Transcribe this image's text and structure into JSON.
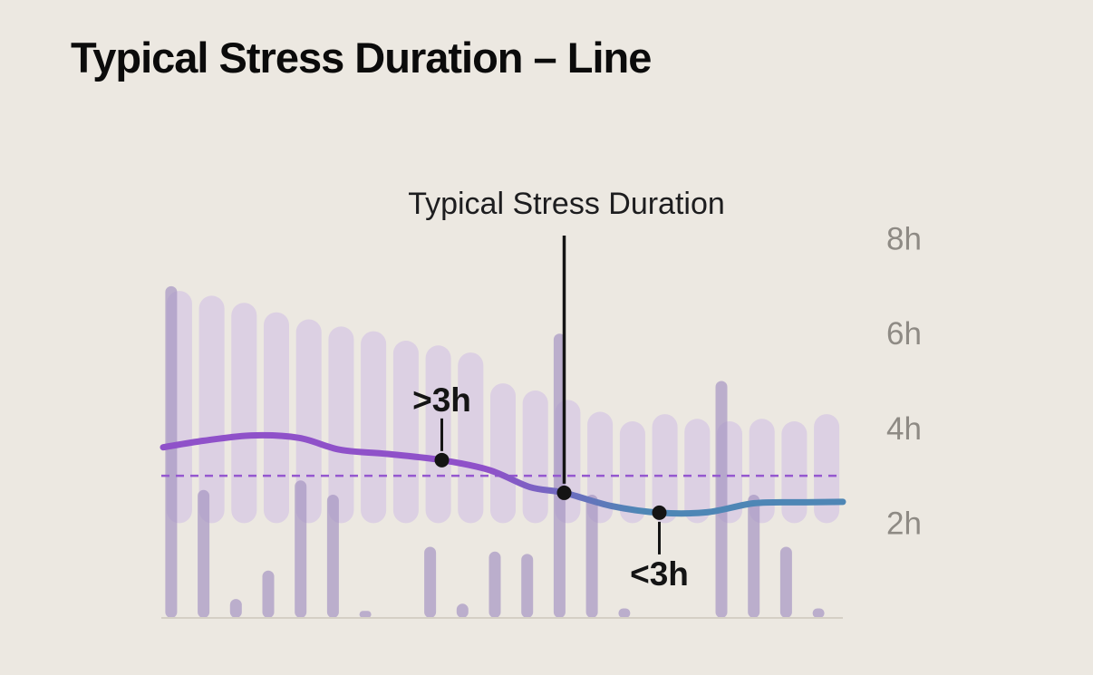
{
  "page": {
    "title": "Typical Stress Duration – Line"
  },
  "chart_data": {
    "type": "line",
    "title": "Typical Stress Duration",
    "unit": "hours",
    "ylim": [
      0,
      8.5
    ],
    "grid": false,
    "legend": false,
    "yticks": [
      {
        "value": 8,
        "label": "8h"
      },
      {
        "value": 6,
        "label": "6h"
      },
      {
        "value": 4,
        "label": "4h"
      },
      {
        "value": 2,
        "label": "2h"
      }
    ],
    "threshold": {
      "value": 3,
      "style": "dashed"
    },
    "trend": {
      "points": [
        {
          "t": 0.0,
          "v": 3.6
        },
        {
          "t": 0.06,
          "v": 3.74
        },
        {
          "t": 0.13,
          "v": 3.85
        },
        {
          "t": 0.2,
          "v": 3.8
        },
        {
          "t": 0.26,
          "v": 3.55
        },
        {
          "t": 0.33,
          "v": 3.46
        },
        {
          "t": 0.41,
          "v": 3.33
        },
        {
          "t": 0.48,
          "v": 3.12
        },
        {
          "t": 0.54,
          "v": 2.76
        },
        {
          "t": 0.59,
          "v": 2.64
        },
        {
          "t": 0.66,
          "v": 2.36
        },
        {
          "t": 0.73,
          "v": 2.22
        },
        {
          "t": 0.8,
          "v": 2.23
        },
        {
          "t": 0.87,
          "v": 2.42
        },
        {
          "t": 0.94,
          "v": 2.44
        },
        {
          "t": 1.0,
          "v": 2.45
        }
      ]
    },
    "wide_bars": [
      {
        "lo": 2.0,
        "hi": 6.9
      },
      {
        "lo": 2.0,
        "hi": 6.8
      },
      {
        "lo": 2.0,
        "hi": 6.65
      },
      {
        "lo": 2.0,
        "hi": 6.45
      },
      {
        "lo": 2.0,
        "hi": 6.3
      },
      {
        "lo": 2.0,
        "hi": 6.15
      },
      {
        "lo": 2.0,
        "hi": 6.05
      },
      {
        "lo": 2.0,
        "hi": 5.85
      },
      {
        "lo": 2.0,
        "hi": 5.75
      },
      {
        "lo": 2.0,
        "hi": 5.6
      },
      {
        "lo": 2.0,
        "hi": 4.95
      },
      {
        "lo": 2.0,
        "hi": 4.8
      },
      {
        "lo": 2.0,
        "hi": 4.6
      },
      {
        "lo": 2.0,
        "hi": 4.35
      },
      {
        "lo": 2.0,
        "hi": 4.15
      },
      {
        "lo": 2.0,
        "hi": 4.3
      },
      {
        "lo": 2.0,
        "hi": 4.2
      },
      {
        "lo": 2.0,
        "hi": 4.15
      },
      {
        "lo": 2.0,
        "hi": 4.2
      },
      {
        "lo": 2.0,
        "hi": 4.15
      },
      {
        "lo": 2.0,
        "hi": 4.3
      }
    ],
    "thin_bars": [
      7.0,
      2.7,
      0.4,
      1.0,
      2.9,
      2.6,
      0.15,
      0,
      1.5,
      0.3,
      1.4,
      1.35,
      6.0,
      2.6,
      0.2,
      0,
      0,
      5.0,
      2.6,
      1.5,
      0.2
    ],
    "annotations": [
      {
        "label": ">3h",
        "t": 0.41,
        "v": 3.33,
        "side": "above"
      },
      {
        "label": "<3h",
        "t": 0.73,
        "v": 2.22,
        "side": "below"
      }
    ],
    "callout": {
      "t": 0.59,
      "v": 2.64
    }
  },
  "colors": {
    "background": "#ECE8E1",
    "page_title": "#0B0B0B",
    "chart_title": "#1D1D1F",
    "tick_label": "#8E8A84",
    "wide_bar": "#CBB7E5",
    "thin_bar": "#A897C3",
    "baseline": "#D5CFC5",
    "threshold": "#9558CF",
    "trend_purple": "#8F51C9",
    "trend_blue": "#4E86B5",
    "annotation": "#141414"
  }
}
